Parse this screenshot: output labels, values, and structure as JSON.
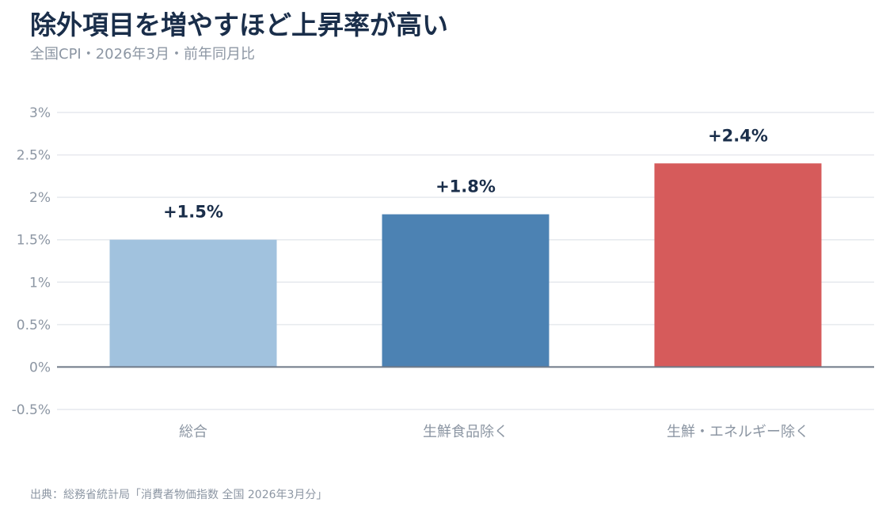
{
  "title": "除外項目を増やすほど上昇率が高い",
  "subtitle": "全国CPI・2026年3月・前年同月比",
  "footer": "出典：総務省統計局「消費者物価指数 全国 2026年3月分」",
  "chart_data": {
    "type": "bar",
    "categories": [
      "総合",
      "生鮮食品除く",
      "生鮮・エネルギー除く"
    ],
    "values": [
      1.5,
      1.8,
      2.4
    ],
    "value_labels": [
      "+1.5%",
      "+1.8%",
      "+2.4%"
    ],
    "colors": [
      "#a1c2de",
      "#4c82b3",
      "#d65b5b"
    ],
    "ylim": [
      -0.5,
      3
    ],
    "yticks": [
      -0.5,
      0,
      0.5,
      1,
      1.5,
      2,
      2.5,
      3
    ],
    "ytick_labels": [
      "-0.5%",
      "0%",
      "0.5%",
      "1%",
      "1.5%",
      "2%",
      "2.5%",
      "3%"
    ],
    "grid": true,
    "xlabel": "",
    "ylabel": ""
  }
}
